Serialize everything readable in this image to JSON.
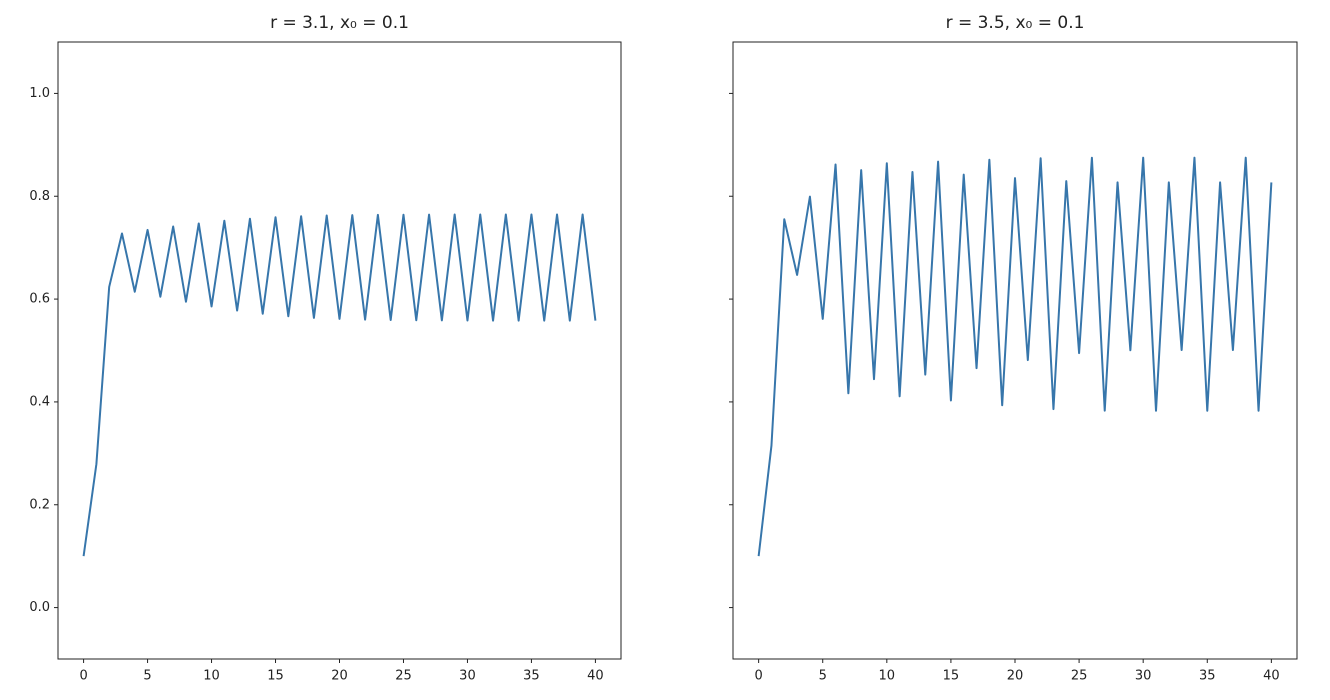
{
  "chart_data": [
    {
      "type": "line",
      "title": "r = 3.1, x₀ = 0.1",
      "x": [
        0,
        1,
        2,
        3,
        4,
        5,
        6,
        7,
        8,
        9,
        10,
        11,
        12,
        13,
        14,
        15,
        16,
        17,
        18,
        19,
        20,
        21,
        22,
        23,
        24,
        25,
        26,
        27,
        28,
        29,
        30,
        31,
        32,
        33,
        34,
        35,
        36,
        37,
        38,
        39,
        40
      ],
      "series": [
        {
          "color": "#3776ab",
          "values": [
            0.1,
            0.279,
            0.6236,
            0.7276,
            0.6143,
            0.7345,
            0.6046,
            0.7411,
            0.5948,
            0.7471,
            0.5857,
            0.7523,
            0.5777,
            0.7563,
            0.5714,
            0.7592,
            0.5667,
            0.7612,
            0.5635,
            0.7625,
            0.5614,
            0.7633,
            0.5601,
            0.7638,
            0.5593,
            0.7641,
            0.5588,
            0.7643,
            0.5585,
            0.7644,
            0.5583,
            0.7645,
            0.5582,
            0.7645,
            0.5581,
            0.7646,
            0.5581,
            0.7646,
            0.5581,
            0.7646,
            0.558
          ]
        }
      ],
      "xlim": [
        -2,
        42
      ],
      "xticks": [
        0,
        5,
        10,
        15,
        20,
        25,
        30,
        35,
        40
      ],
      "ylim": [
        -0.1,
        1.1
      ],
      "yticks": [
        0.0,
        0.2,
        0.4,
        0.6,
        0.8,
        1.0
      ],
      "ytick_labels": true
    },
    {
      "type": "line",
      "title": "r = 3.5, x₀ = 0.1",
      "x": [
        0,
        1,
        2,
        3,
        4,
        5,
        6,
        7,
        8,
        9,
        10,
        11,
        12,
        13,
        14,
        15,
        16,
        17,
        18,
        19,
        20,
        21,
        22,
        23,
        24,
        25,
        26,
        27,
        28,
        29,
        30,
        31,
        32,
        33,
        34,
        35,
        36,
        37,
        38,
        39,
        40
      ],
      "series": [
        {
          "color": "#3776ab",
          "values": [
            0.1,
            0.315,
            0.7552,
            0.647,
            0.7993,
            0.5614,
            0.8618,
            0.4168,
            0.8508,
            0.4443,
            0.8641,
            0.4109,
            0.8472,
            0.4531,
            0.8673,
            0.4028,
            0.842,
            0.4657,
            0.8709,
            0.3935,
            0.8353,
            0.4814,
            0.8738,
            0.386,
            0.8295,
            0.495,
            0.8749,
            0.383,
            0.8271,
            0.5005,
            0.875,
            0.3828,
            0.8269,
            0.5009,
            0.875,
            0.3828,
            0.8269,
            0.5009,
            0.875,
            0.3828,
            0.8269
          ]
        }
      ],
      "xlim": [
        -2,
        42
      ],
      "xticks": [
        0,
        5,
        10,
        15,
        20,
        25,
        30,
        35,
        40
      ],
      "ylim": [
        -0.1,
        1.1
      ],
      "yticks": [
        0.0,
        0.2,
        0.4,
        0.6,
        0.8,
        1.0
      ],
      "ytick_labels": false
    }
  ]
}
